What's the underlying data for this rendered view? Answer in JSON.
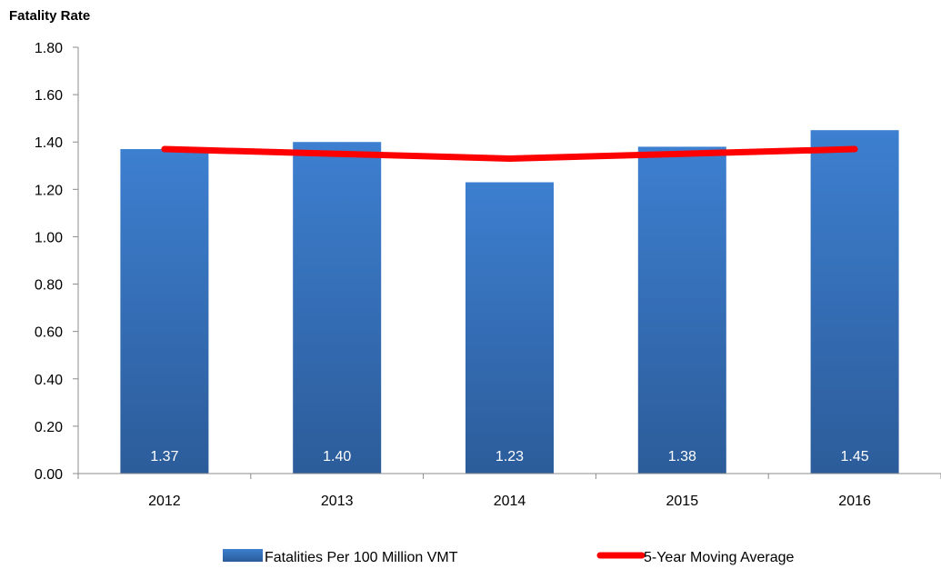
{
  "chart_data": {
    "type": "bar",
    "ylabel": "Fatality Rate",
    "categories": [
      "2012",
      "2013",
      "2014",
      "2015",
      "2016"
    ],
    "series": [
      {
        "name": "Fatalities Per 100 Million VMT",
        "kind": "bar",
        "color": "#3A78C4",
        "values": [
          1.37,
          1.4,
          1.23,
          1.38,
          1.45
        ],
        "data_labels": [
          "1.37",
          "1.40",
          "1.23",
          "1.38",
          "1.45"
        ]
      },
      {
        "name": "5-Year Moving Average",
        "kind": "line",
        "color": "#FF0000",
        "values": [
          1.37,
          1.35,
          1.33,
          1.35,
          1.37
        ]
      }
    ],
    "ylim": [
      0,
      1.8
    ],
    "yticks": [
      "0.00",
      "0.20",
      "0.40",
      "0.60",
      "0.80",
      "1.00",
      "1.20",
      "1.40",
      "1.60",
      "1.80"
    ],
    "grid": false,
    "legend_position": "bottom"
  }
}
